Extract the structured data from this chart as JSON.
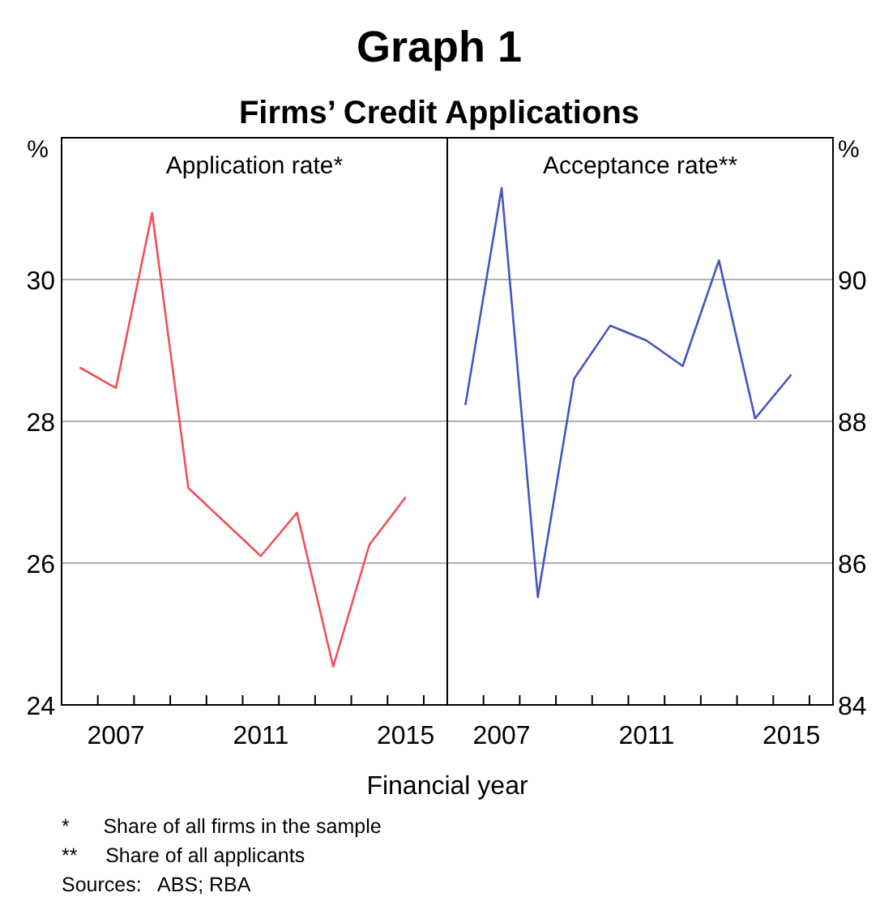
{
  "chart_data": [
    {
      "type": "line",
      "title": "Graph 1",
      "subtitle": "Firms’ Credit Applications",
      "xlabel": "Financial year",
      "ylabel": "%",
      "x": [
        2006,
        2007,
        2008,
        2009,
        2010,
        2011,
        2012,
        2013,
        2014,
        2015
      ],
      "series": [
        {
          "name": "Application rate*",
          "color": "#f0505a",
          "values": [
            28.76,
            28.47,
            30.94,
            27.06,
            26.58,
            26.1,
            26.71,
            24.54,
            26.26,
            26.93
          ]
        }
      ],
      "xlim": [
        2005.5,
        2016.15
      ],
      "xticks": [
        {
          "value": 2006.5,
          "label": null
        },
        {
          "value": 2007,
          "label": "2007"
        },
        {
          "value": 2007.5,
          "label": null
        },
        {
          "value": 2008.5,
          "label": null
        },
        {
          "value": 2009.5,
          "label": null
        },
        {
          "value": 2010.5,
          "label": null
        },
        {
          "value": 2011,
          "label": "2011"
        },
        {
          "value": 2011.5,
          "label": null
        },
        {
          "value": 2012.5,
          "label": null
        },
        {
          "value": 2013.5,
          "label": null
        },
        {
          "value": 2014.5,
          "label": null
        },
        {
          "value": 2015,
          "label": "2015"
        },
        {
          "value": 2015.5,
          "label": null
        }
      ],
      "ylim": [
        24,
        32
      ],
      "yticks": [
        24,
        26,
        28,
        30
      ],
      "grid": "y",
      "annotations": [
        "*      Share of all firms in the sample",
        "**     Share of all applicants",
        "Sources:   ABS; RBA"
      ]
    },
    {
      "type": "line",
      "y2label": "%",
      "x": [
        2006,
        2007,
        2008,
        2009,
        2010,
        2011,
        2012,
        2013,
        2014,
        2015
      ],
      "series": [
        {
          "name": "Acceptance rate**",
          "color": "#4455c0",
          "axis": "y2",
          "values": [
            88.23,
            91.29,
            85.52,
            88.6,
            89.35,
            89.14,
            88.78,
            90.27,
            88.04,
            88.66
          ]
        }
      ],
      "xlim": [
        2005.5,
        2016.15
      ],
      "xticks": [
        {
          "value": 2006.5,
          "label": null
        },
        {
          "value": 2007,
          "label": "2007"
        },
        {
          "value": 2007.5,
          "label": null
        },
        {
          "value": 2008.5,
          "label": null
        },
        {
          "value": 2009.5,
          "label": null
        },
        {
          "value": 2010.5,
          "label": null
        },
        {
          "value": 2011,
          "label": "2011"
        },
        {
          "value": 2011.5,
          "label": null
        },
        {
          "value": 2012.5,
          "label": null
        },
        {
          "value": 2013.5,
          "label": null
        },
        {
          "value": 2014.5,
          "label": null
        },
        {
          "value": 2015,
          "label": "2015"
        },
        {
          "value": 2015.5,
          "label": null
        }
      ],
      "y2lim": [
        84,
        92
      ],
      "y2ticks": [
        84,
        86,
        88,
        90
      ],
      "grid": "y"
    }
  ]
}
